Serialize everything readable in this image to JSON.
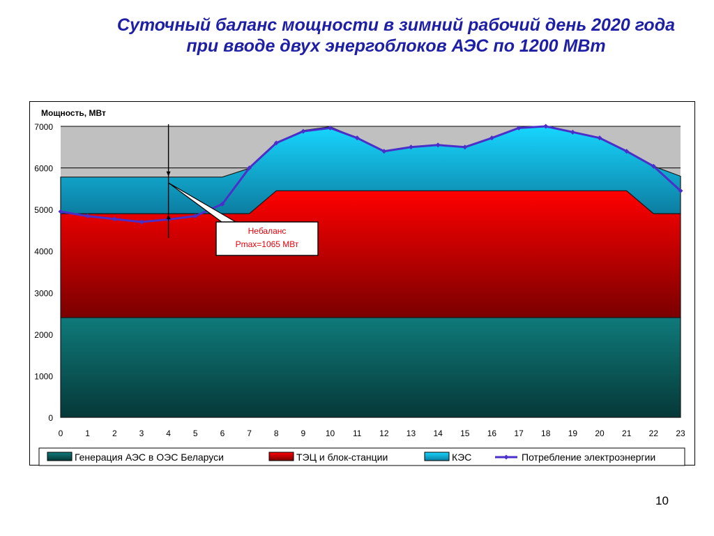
{
  "title": {
    "line1": "Суточный баланс мощности в зимний рабочий день 2020 года",
    "line2": "при вводе двух энергоблоков АЭС по 1200 МВт"
  },
  "slide_number": "10",
  "colors": {
    "aes": "#0e6f6f",
    "tec": "#e8000a",
    "kes": "#1fbfe9",
    "consumption": "#4b2fc9"
  },
  "chart_data": {
    "type": "area",
    "ylabel": "Мощность, МВт",
    "ylim": [
      0,
      7000
    ],
    "yticks": [
      0,
      1000,
      2000,
      3000,
      4000,
      5000,
      6000,
      7000
    ],
    "x": [
      0,
      1,
      2,
      3,
      4,
      5,
      6,
      7,
      8,
      9,
      10,
      11,
      12,
      13,
      14,
      15,
      16,
      17,
      18,
      19,
      20,
      21,
      22,
      23
    ],
    "stacked_series": [
      {
        "name": "Генерация АЭС в ОЭС Беларуси",
        "color": "#0e6f6f",
        "values": [
          2400,
          2400,
          2400,
          2400,
          2400,
          2400,
          2400,
          2400,
          2400,
          2400,
          2400,
          2400,
          2400,
          2400,
          2400,
          2400,
          2400,
          2400,
          2400,
          2400,
          2400,
          2400,
          2400,
          2400
        ]
      },
      {
        "name": "ТЭЦ и блок-станции",
        "color": "#e8000a",
        "values": [
          2500,
          2500,
          2500,
          2500,
          2500,
          2500,
          2500,
          2500,
          3050,
          3050,
          3050,
          3050,
          3050,
          3050,
          3050,
          3050,
          3050,
          3050,
          3050,
          3050,
          3050,
          3050,
          2500,
          2500
        ]
      },
      {
        "name": "КЭС",
        "color": "#1fbfe9",
        "values": [
          880,
          880,
          880,
          880,
          880,
          880,
          880,
          1090,
          1140,
          1450,
          1540,
          1270,
          960,
          1060,
          1100,
          1060,
          1270,
          1510,
          1560,
          1420,
          1260,
          960,
          1140,
          900
        ]
      }
    ],
    "line_series": {
      "name": "Потребление электроэнергии",
      "color": "#4b2fc9",
      "values": [
        4950,
        4840,
        4770,
        4700,
        4760,
        4840,
        5130,
        6000,
        6600,
        6880,
        6960,
        6720,
        6400,
        6500,
        6550,
        6500,
        6720,
        6960,
        7000,
        6860,
        6720,
        6400,
        6040,
        5450
      ]
    },
    "annotation": {
      "text_line1": "Небаланс",
      "text_line2": "Pmax=1065 МВт",
      "x": 4,
      "y_low": 4900,
      "y_high": 5780
    },
    "legend_position": "bottom"
  }
}
